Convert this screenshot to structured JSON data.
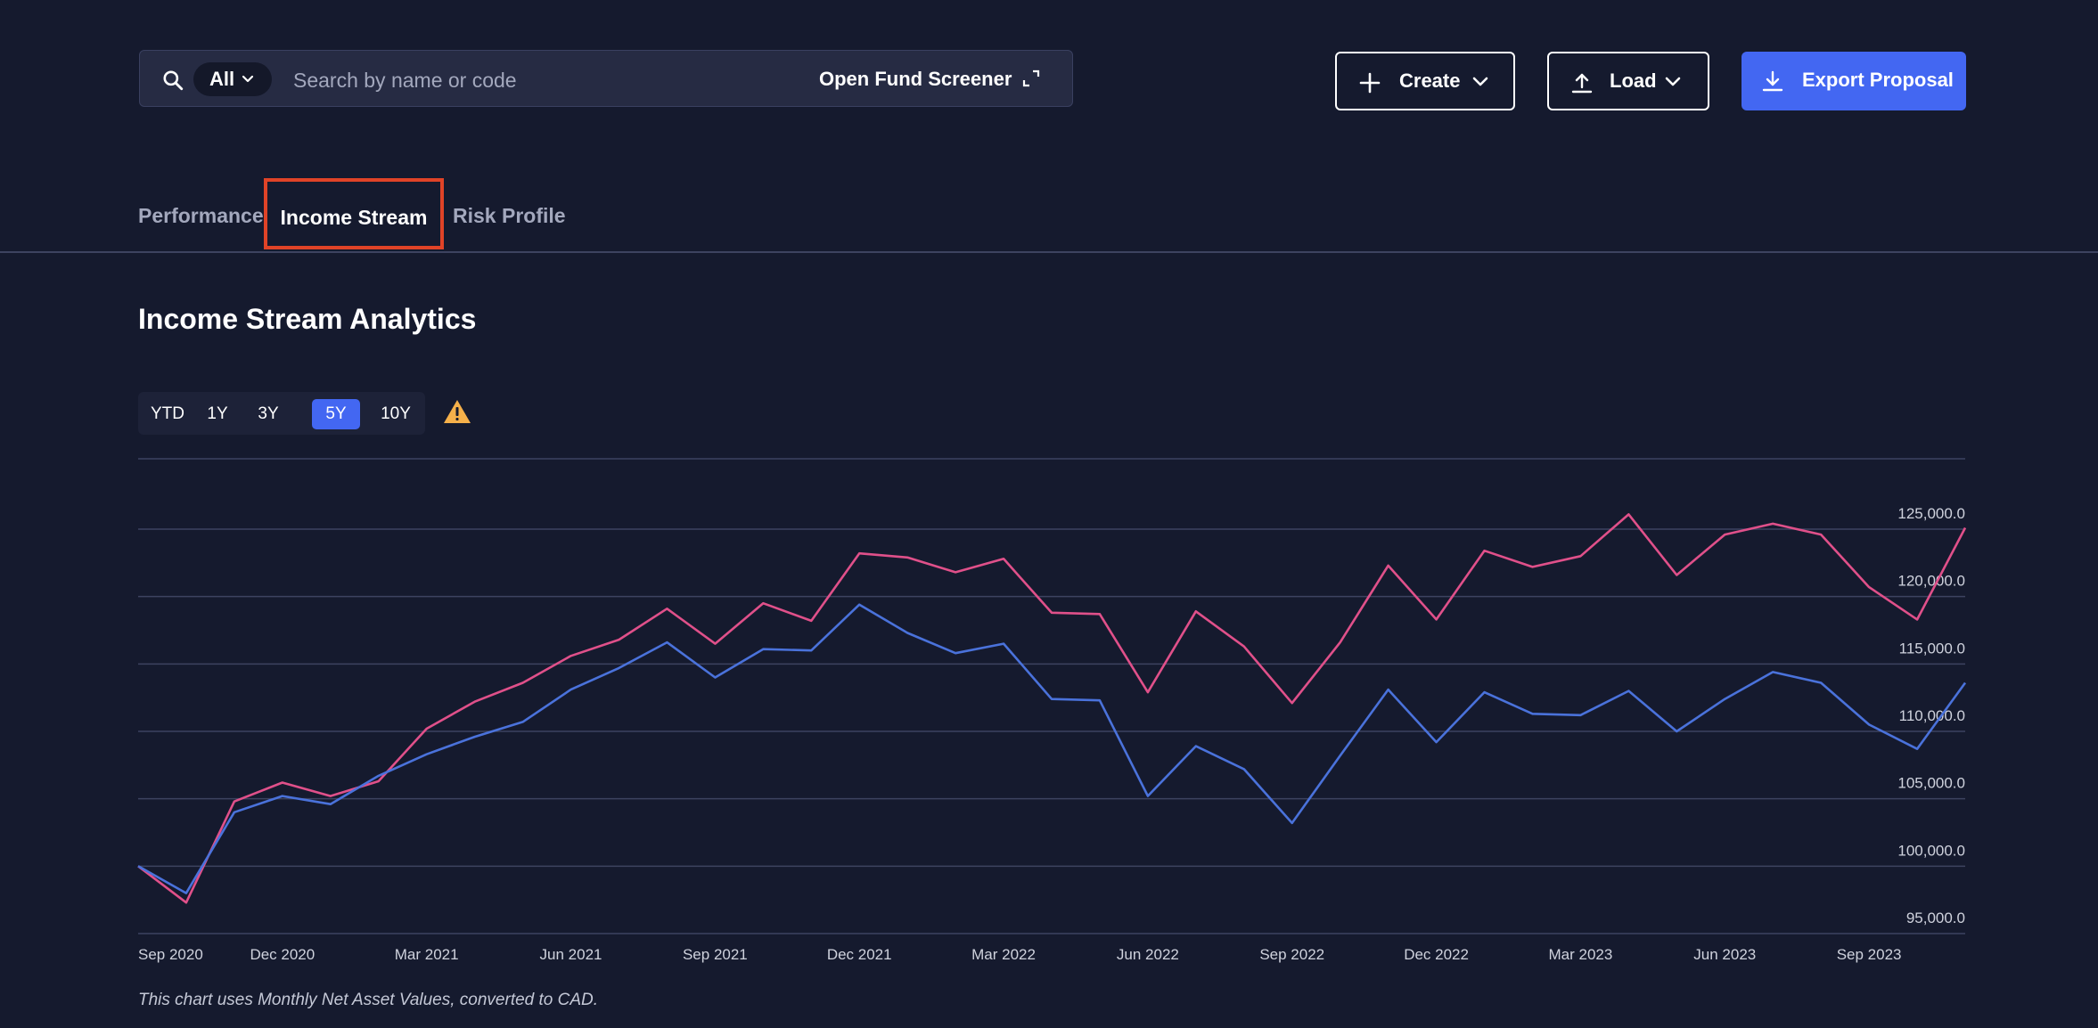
{
  "search": {
    "scope_label": "All",
    "placeholder": "Search by name or code",
    "value": "",
    "screener_label": "Open Fund Screener"
  },
  "toolbar": {
    "create_label": "Create",
    "load_label": "Load",
    "export_label": "Export Proposal"
  },
  "tabs": [
    {
      "label": "Performance",
      "active": false
    },
    {
      "label": "Income Stream",
      "active": true
    },
    {
      "label": "Risk Profile",
      "active": false
    }
  ],
  "section_title": "Income Stream Analytics",
  "ranges": [
    {
      "label": "YTD",
      "active": false
    },
    {
      "label": "1Y",
      "active": false
    },
    {
      "label": "3Y",
      "active": false
    },
    {
      "label": "5Y",
      "active": true
    },
    {
      "label": "10Y",
      "active": false
    }
  ],
  "footnote": "This chart uses Monthly Net Asset Values, converted to CAD.",
  "colors": {
    "background": "#151a2e",
    "accent": "#4367f2",
    "highlight_border": "#e04327",
    "warning": "#f5b04a",
    "series_pink": "#e0508a",
    "series_blue": "#4a72db"
  },
  "chart_data": {
    "type": "line",
    "x": [
      "2020-09",
      "2020-10",
      "2020-11",
      "2020-12",
      "2021-01",
      "2021-02",
      "2021-03",
      "2021-04",
      "2021-05",
      "2021-06",
      "2021-07",
      "2021-08",
      "2021-09",
      "2021-10",
      "2021-11",
      "2021-12",
      "2022-01",
      "2022-02",
      "2022-03",
      "2022-04",
      "2022-05",
      "2022-06",
      "2022-07",
      "2022-08",
      "2022-09",
      "2022-10",
      "2022-11",
      "2022-12",
      "2023-01",
      "2023-02",
      "2023-03",
      "2023-04",
      "2023-05",
      "2023-06",
      "2023-07",
      "2023-08",
      "2023-09",
      "2023-10",
      "2023-11"
    ],
    "x_tick_labels": [
      "Sep 2020",
      "Dec 2020",
      "Mar 2021",
      "Jun 2021",
      "Sep 2021",
      "Dec 2021",
      "Mar 2022",
      "Jun 2022",
      "Sep 2022",
      "Dec 2022",
      "Mar 2023",
      "Jun 2023",
      "Sep 2023"
    ],
    "y_ticks": [
      "95,000.0",
      "100,000.0",
      "105,000.0",
      "110,000.0",
      "115,000.0",
      "120,000.0",
      "125,000.0"
    ],
    "ylim": [
      95000,
      126000
    ],
    "grid": true,
    "series": [
      {
        "color": "#e0508a",
        "values": [
          100000,
          97300,
          104800,
          106200,
          105200,
          106300,
          110200,
          112200,
          113600,
          115600,
          116800,
          119100,
          116500,
          119500,
          118200,
          123200,
          122900,
          121800,
          122800,
          118800,
          118700,
          112900,
          118900,
          116300,
          112100,
          116600,
          122300,
          118300,
          123400,
          122200,
          123000,
          126100,
          121600,
          124600,
          125400,
          124600,
          120700,
          118300,
          125100
        ]
      },
      {
        "color": "#4a72db",
        "values": [
          100000,
          98000,
          104000,
          105200,
          104600,
          106700,
          108300,
          109600,
          110700,
          113100,
          114700,
          116600,
          114000,
          116100,
          116000,
          119400,
          117300,
          115800,
          116500,
          112400,
          112300,
          105200,
          108900,
          107200,
          103200,
          108200,
          113100,
          109200,
          112900,
          111300,
          111200,
          113000,
          110000,
          112400,
          114400,
          113600,
          110500,
          108700,
          113600
        ]
      }
    ]
  }
}
